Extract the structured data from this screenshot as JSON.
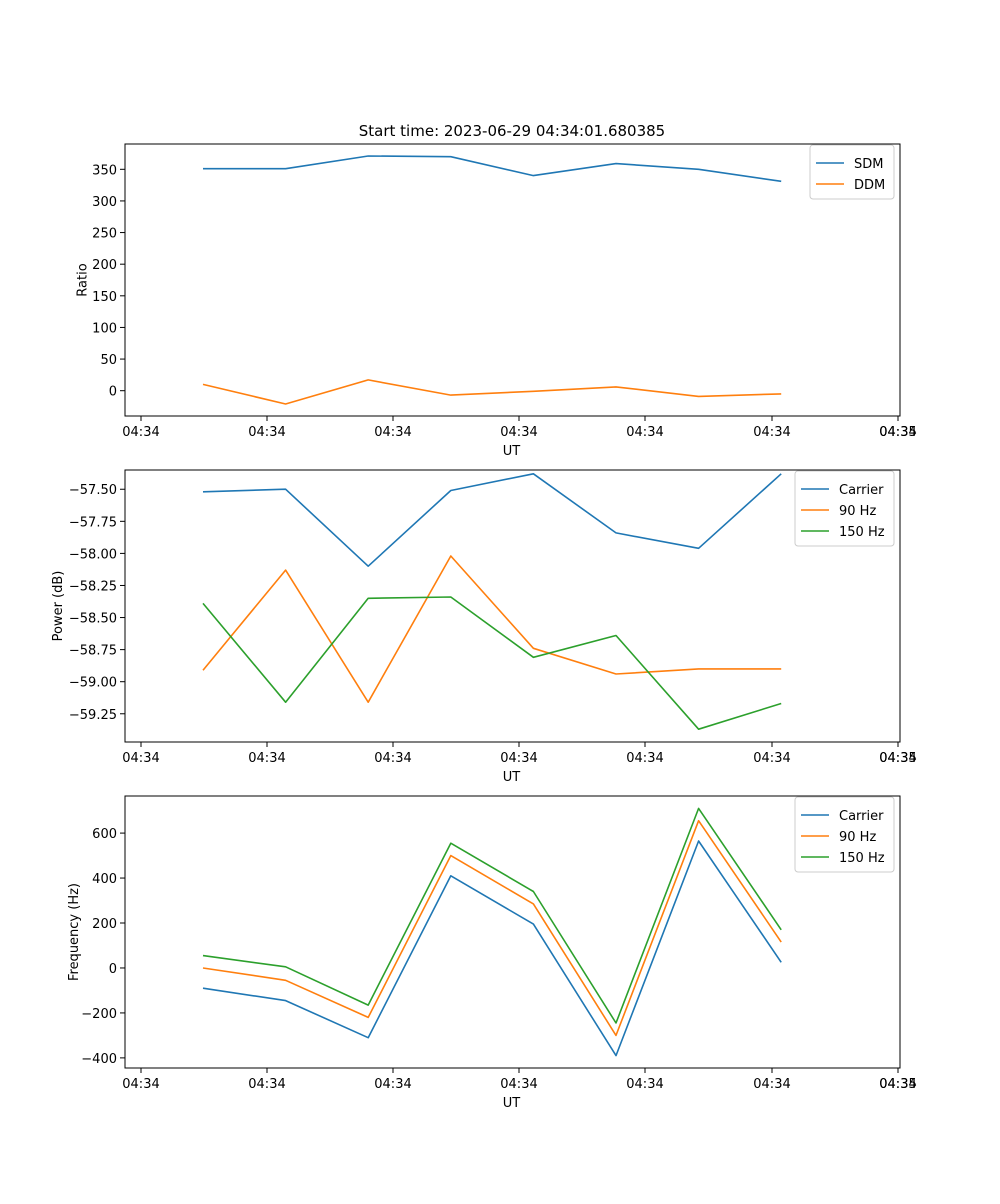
{
  "figure_title": "Start time: 2023-06-29 04:34:01.680385",
  "colors": {
    "blue": "#1f77b4",
    "orange": "#ff7f0e",
    "green": "#2ca02c"
  },
  "chart_data": [
    {
      "type": "line",
      "title": "Start time: 2023-06-29 04:34:01.680385",
      "xlabel": "UT",
      "ylabel": "Ratio",
      "x_ticks": [
        "04:34",
        "04:34",
        "04:34",
        "04:34",
        "04:34",
        "04:34",
        "04:34",
        "04:35"
      ],
      "x_points": 8,
      "ylim": [
        -40,
        390
      ],
      "y_ticks": [
        0,
        50,
        100,
        150,
        200,
        250,
        300,
        350
      ],
      "legend": "top-right",
      "grid": false,
      "series": [
        {
          "name": "SDM",
          "color": "#1f77b4",
          "values": [
            351,
            351,
            371,
            370,
            340,
            359,
            350,
            331
          ]
        },
        {
          "name": "DDM",
          "color": "#ff7f0e",
          "values": [
            10,
            -21,
            17,
            -7,
            -1,
            6,
            -9,
            -5
          ]
        }
      ]
    },
    {
      "type": "line",
      "title": "",
      "xlabel": "UT",
      "ylabel": "Power (dB)",
      "x_ticks": [
        "04:34",
        "04:34",
        "04:34",
        "04:34",
        "04:34",
        "04:34",
        "04:34",
        "04:35"
      ],
      "x_points": 8,
      "ylim": [
        -59.47,
        -57.35
      ],
      "y_ticks": [
        -57.5,
        -57.75,
        -58.0,
        -58.25,
        -58.5,
        -58.75,
        -59.0,
        -59.25
      ],
      "y_tick_labels": [
        "−57.50",
        "−57.75",
        "−58.00",
        "−58.25",
        "−58.50",
        "−58.75",
        "−59.00",
        "−59.25"
      ],
      "legend": "top-right",
      "grid": false,
      "series": [
        {
          "name": "Carrier",
          "color": "#1f77b4",
          "values": [
            -57.52,
            -57.5,
            -58.1,
            -57.51,
            -57.38,
            -57.84,
            -57.96,
            -57.38
          ]
        },
        {
          "name": "90 Hz",
          "color": "#ff7f0e",
          "values": [
            -58.91,
            -58.13,
            -59.16,
            -58.02,
            -58.74,
            -58.94,
            -58.9,
            -58.9
          ]
        },
        {
          "name": "150 Hz",
          "color": "#2ca02c",
          "values": [
            -58.39,
            -59.16,
            -58.35,
            -58.34,
            -58.81,
            -58.64,
            -59.37,
            -59.17
          ]
        }
      ]
    },
    {
      "type": "line",
      "title": "",
      "xlabel": "UT",
      "ylabel": "Frequency (Hz)",
      "x_ticks": [
        "04:34",
        "04:34",
        "04:34",
        "04:34",
        "04:34",
        "04:34",
        "04:34",
        "04:35"
      ],
      "x_points": 8,
      "ylim": [
        -445,
        765
      ],
      "y_ticks": [
        600,
        400,
        200,
        0,
        -200,
        -400
      ],
      "y_tick_labels": [
        "600",
        "400",
        "200",
        "0",
        "−200",
        "−400"
      ],
      "legend": "top-right",
      "grid": false,
      "series": [
        {
          "name": "Carrier",
          "color": "#1f77b4",
          "values": [
            -90,
            -145,
            -310,
            410,
            195,
            -390,
            565,
            25
          ]
        },
        {
          "name": "90 Hz",
          "color": "#ff7f0e",
          "values": [
            0,
            -55,
            -220,
            500,
            285,
            -300,
            655,
            115
          ]
        },
        {
          "name": "150 Hz",
          "color": "#2ca02c",
          "values": [
            55,
            5,
            -165,
            555,
            340,
            -245,
            710,
            170
          ]
        }
      ]
    }
  ]
}
